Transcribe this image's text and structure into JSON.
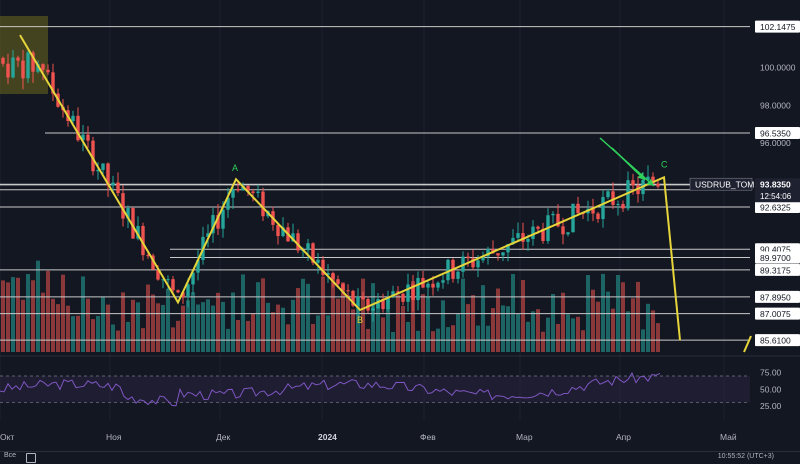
{
  "chart_data": {
    "type": "candlestick",
    "symbol": "USDRUB_TOM",
    "price_levels": [
      "102.1475",
      "96.5350",
      "93.8025",
      "93.5425",
      "92.6325",
      "90.4075",
      "89.9700",
      "89.3175",
      "87.8950",
      "87.0075",
      "85.6100"
    ],
    "axis_ticks": [
      "100.0000",
      "98.0000",
      "96.0000"
    ],
    "current_price": "93.8350",
    "countdown": "12:54:06",
    "ylim": [
      85.3,
      102.5
    ],
    "x_labels": [
      "Окт",
      "Ноя",
      "Дек",
      "2024",
      "Фев",
      "Мар",
      "Апр",
      "Май"
    ],
    "wave_labels": [
      "A",
      "B",
      "C"
    ],
    "wave_path": [
      {
        "t": 20,
        "p": 101.7
      },
      {
        "t": 178,
        "p": 87.6
      },
      {
        "t": 236,
        "p": 94.1
      },
      {
        "t": 360,
        "p": 87.2
      },
      {
        "t": 664,
        "p": 94.2
      },
      {
        "t": 680,
        "p": 85.6
      }
    ],
    "rsi": {
      "ticks": [
        "75.00",
        "50.00",
        "25.00"
      ],
      "levels": [
        70,
        30
      ],
      "range": [
        10,
        85
      ]
    },
    "colors": {
      "background": "#131722",
      "up": "#26a69a",
      "down": "#ef5350",
      "wave": "#e5d43a",
      "arrow": "#2fd15a",
      "rsi_line": "#7e57c2",
      "level_line": "#c8c8c8",
      "label_bg": "#ffffff",
      "price_label_bg": "#1e2230"
    }
  },
  "footer": {
    "left": "Все",
    "time": "10:55:52 (UTC+3)"
  }
}
